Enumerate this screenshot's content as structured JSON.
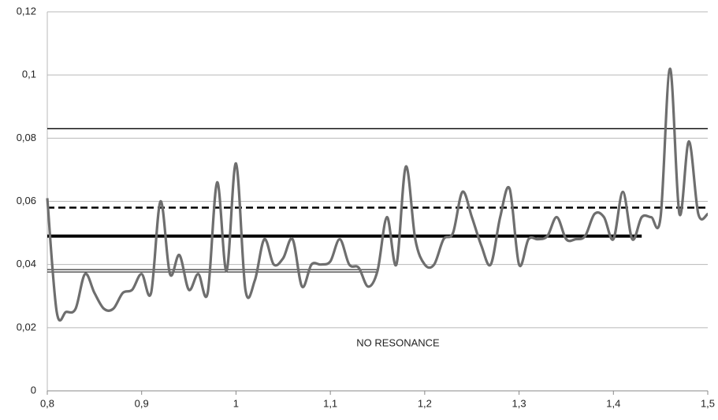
{
  "chart_data": {
    "type": "line",
    "annotation": "NO RESONANCE",
    "x": [
      0.8,
      0.81,
      0.82,
      0.83,
      0.84,
      0.85,
      0.86,
      0.87,
      0.88,
      0.89,
      0.9,
      0.91,
      0.92,
      0.93,
      0.94,
      0.95,
      0.96,
      0.97,
      0.98,
      0.99,
      1.0,
      1.01,
      1.02,
      1.03,
      1.04,
      1.05,
      1.06,
      1.07,
      1.08,
      1.09,
      1.1,
      1.11,
      1.12,
      1.13,
      1.14,
      1.15,
      1.16,
      1.17,
      1.18,
      1.19,
      1.2,
      1.21,
      1.22,
      1.23,
      1.24,
      1.25,
      1.26,
      1.27,
      1.28,
      1.29,
      1.3,
      1.31,
      1.32,
      1.33,
      1.34,
      1.35,
      1.36,
      1.37,
      1.38,
      1.39,
      1.4,
      1.41,
      1.42,
      1.43,
      1.44,
      1.45,
      1.46,
      1.47,
      1.48,
      1.49,
      1.5
    ],
    "series": [
      {
        "color": "#6e6e6e",
        "values": [
          0.061,
          0.025,
          0.025,
          0.026,
          0.037,
          0.031,
          0.026,
          0.026,
          0.031,
          0.032,
          0.037,
          0.031,
          0.06,
          0.037,
          0.043,
          0.032,
          0.037,
          0.031,
          0.066,
          0.038,
          0.072,
          0.032,
          0.035,
          0.048,
          0.04,
          0.042,
          0.048,
          0.033,
          0.04,
          0.04,
          0.041,
          0.048,
          0.04,
          0.039,
          0.033,
          0.038,
          0.055,
          0.04,
          0.071,
          0.048,
          0.04,
          0.04,
          0.048,
          0.05,
          0.063,
          0.055,
          0.046,
          0.04,
          0.055,
          0.064,
          0.04,
          0.048,
          0.048,
          0.049,
          0.055,
          0.048,
          0.048,
          0.049,
          0.056,
          0.055,
          0.048,
          0.063,
          0.048,
          0.055,
          0.055,
          0.055,
          0.102,
          0.056,
          0.079,
          0.056,
          0.056
        ]
      }
    ],
    "reference_lines": [
      {
        "value": 0.083,
        "x": [
          0.8,
          1.5
        ],
        "style": "thin"
      },
      {
        "value": 0.058,
        "x": [
          0.8,
          1.5
        ],
        "style": "dashed"
      },
      {
        "value": 0.049,
        "x": [
          0.8,
          1.43
        ],
        "style": "thick"
      },
      {
        "value": 0.038,
        "x": [
          0.8,
          1.15
        ],
        "style": "double"
      }
    ],
    "xlim": [
      0.8,
      1.5
    ],
    "xticks": [
      {
        "value": 0.8,
        "label": "0,8"
      },
      {
        "value": 0.9,
        "label": "0,9"
      },
      1,
      {
        "value": 1.1,
        "label": "1,1"
      },
      {
        "value": 1.2,
        "label": "1,2"
      },
      {
        "value": 1.3,
        "label": "1,3"
      },
      {
        "value": 1.4,
        "label": "1,4"
      },
      {
        "value": 1.5,
        "label": "1,5"
      }
    ],
    "ylim": [
      0,
      0.12
    ],
    "yticks": [
      0,
      {
        "value": 0.02,
        "label": "0,02"
      },
      {
        "value": 0.04,
        "label": "0,04"
      },
      {
        "value": 0.06,
        "label": "0,06"
      },
      {
        "value": 0.08,
        "label": "0,08"
      },
      {
        "value": 0.1,
        "label": "0,1"
      },
      {
        "value": 0.12,
        "label": "0,12"
      }
    ],
    "grid": true
  }
}
